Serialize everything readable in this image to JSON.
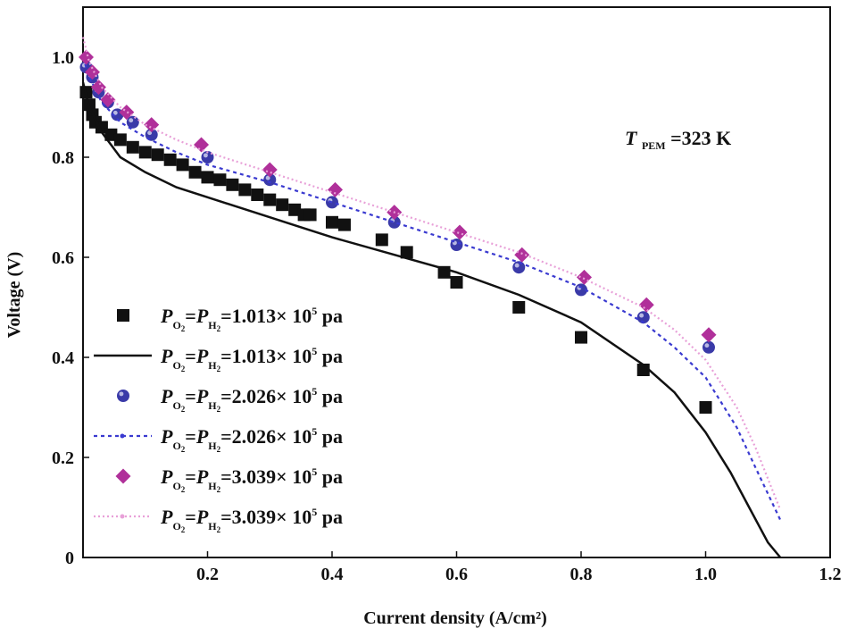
{
  "chart_data": {
    "type": "scatter",
    "title": "",
    "xlabel": "Current density (A/cm²)",
    "ylabel": "Voltage (V)",
    "xlim": [
      0,
      1.2
    ],
    "ylim": [
      0,
      1.1
    ],
    "x_ticks": [
      "0.2",
      "0.4",
      "0.6",
      "0.8",
      "1.0",
      "1.2"
    ],
    "y_ticks": [
      "0",
      "0.2",
      "0.4",
      "0.6",
      "0.8",
      "1.0"
    ],
    "annotation": {
      "T": "T",
      "sub": "PEM",
      "rest": "=323 K"
    },
    "legend_parts": {
      "P": "P",
      "o2": "O",
      "h": "H",
      "two": "2",
      "eq": "=",
      "times": "× 10",
      "exp": "5",
      "unit": " pa"
    },
    "series": [
      {
        "name": "PO2=PH2=1.013× 105pa (experimental)",
        "kind": "markers",
        "marker": "square",
        "color": "#111111",
        "value": "1.013",
        "x": [
          0.005,
          0.01,
          0.015,
          0.02,
          0.03,
          0.045,
          0.06,
          0.08,
          0.1,
          0.12,
          0.14,
          0.16,
          0.18,
          0.2,
          0.22,
          0.24,
          0.26,
          0.28,
          0.3,
          0.32,
          0.34,
          0.355,
          0.365,
          0.4,
          0.42,
          0.48,
          0.52,
          0.58,
          0.6,
          0.7,
          0.8,
          0.9,
          1.0
        ],
        "y": [
          0.93,
          0.905,
          0.885,
          0.87,
          0.86,
          0.845,
          0.835,
          0.82,
          0.81,
          0.805,
          0.795,
          0.785,
          0.77,
          0.76,
          0.755,
          0.745,
          0.735,
          0.725,
          0.715,
          0.705,
          0.695,
          0.685,
          0.685,
          0.67,
          0.665,
          0.635,
          0.61,
          0.57,
          0.55,
          0.5,
          0.44,
          0.375,
          0.3
        ]
      },
      {
        "name": "PO2=PH2=1.013× 105pa (model)",
        "kind": "line",
        "dash": "solid",
        "color": "#111111",
        "value": "1.013",
        "x": [
          0.0,
          0.01,
          0.03,
          0.06,
          0.1,
          0.15,
          0.2,
          0.3,
          0.4,
          0.5,
          0.6,
          0.7,
          0.8,
          0.9,
          0.95,
          1.0,
          1.04,
          1.07,
          1.1,
          1.12
        ],
        "y": [
          0.95,
          0.9,
          0.85,
          0.8,
          0.77,
          0.74,
          0.72,
          0.68,
          0.64,
          0.605,
          0.57,
          0.525,
          0.47,
          0.385,
          0.33,
          0.25,
          0.17,
          0.1,
          0.03,
          0.0
        ]
      },
      {
        "name": "PO2=PH2=2.026× 105pa (experimental)",
        "kind": "markers",
        "marker": "circle",
        "color": "#3a3aa8",
        "value": "2.026",
        "x": [
          0.005,
          0.015,
          0.025,
          0.04,
          0.055,
          0.08,
          0.11,
          0.2,
          0.3,
          0.4,
          0.5,
          0.6,
          0.7,
          0.8,
          0.9,
          1.005
        ],
        "y": [
          0.98,
          0.96,
          0.93,
          0.91,
          0.885,
          0.87,
          0.845,
          0.8,
          0.755,
          0.71,
          0.67,
          0.625,
          0.58,
          0.535,
          0.48,
          0.42
        ]
      },
      {
        "name": "PO2=PH2=2.026× 105pa (model)",
        "kind": "line",
        "dash": "dotted",
        "color": "#3a3ad0",
        "value": "2.026",
        "x": [
          0.0,
          0.01,
          0.03,
          0.06,
          0.1,
          0.15,
          0.2,
          0.3,
          0.4,
          0.5,
          0.6,
          0.7,
          0.8,
          0.9,
          0.95,
          1.0,
          1.05,
          1.08,
          1.12
        ],
        "y": [
          1.0,
          0.96,
          0.91,
          0.87,
          0.84,
          0.81,
          0.785,
          0.75,
          0.71,
          0.67,
          0.63,
          0.59,
          0.54,
          0.47,
          0.42,
          0.36,
          0.26,
          0.18,
          0.075
        ]
      },
      {
        "name": "PO2=PH2=3.039× 105pa (experimental)",
        "kind": "markers",
        "marker": "diamond",
        "color": "#b0309a",
        "value": "3.039",
        "x": [
          0.005,
          0.015,
          0.025,
          0.04,
          0.07,
          0.11,
          0.19,
          0.3,
          0.405,
          0.5,
          0.605,
          0.705,
          0.805,
          0.905,
          1.005
        ],
        "y": [
          1.0,
          0.97,
          0.94,
          0.915,
          0.89,
          0.865,
          0.825,
          0.775,
          0.735,
          0.69,
          0.65,
          0.605,
          0.56,
          0.505,
          0.445
        ]
      },
      {
        "name": "PO2=PH2=3.039× 105pa (model)",
        "kind": "line",
        "dash": "dotted-fine",
        "color": "#e8a0d8",
        "value": "3.039",
        "x": [
          0.0,
          0.01,
          0.03,
          0.06,
          0.1,
          0.15,
          0.2,
          0.3,
          0.4,
          0.5,
          0.6,
          0.7,
          0.8,
          0.9,
          0.95,
          1.0,
          1.05,
          1.08,
          1.12
        ],
        "y": [
          1.04,
          0.99,
          0.94,
          0.9,
          0.865,
          0.835,
          0.81,
          0.77,
          0.73,
          0.69,
          0.65,
          0.61,
          0.56,
          0.5,
          0.455,
          0.395,
          0.3,
          0.22,
          0.095
        ]
      }
    ]
  }
}
